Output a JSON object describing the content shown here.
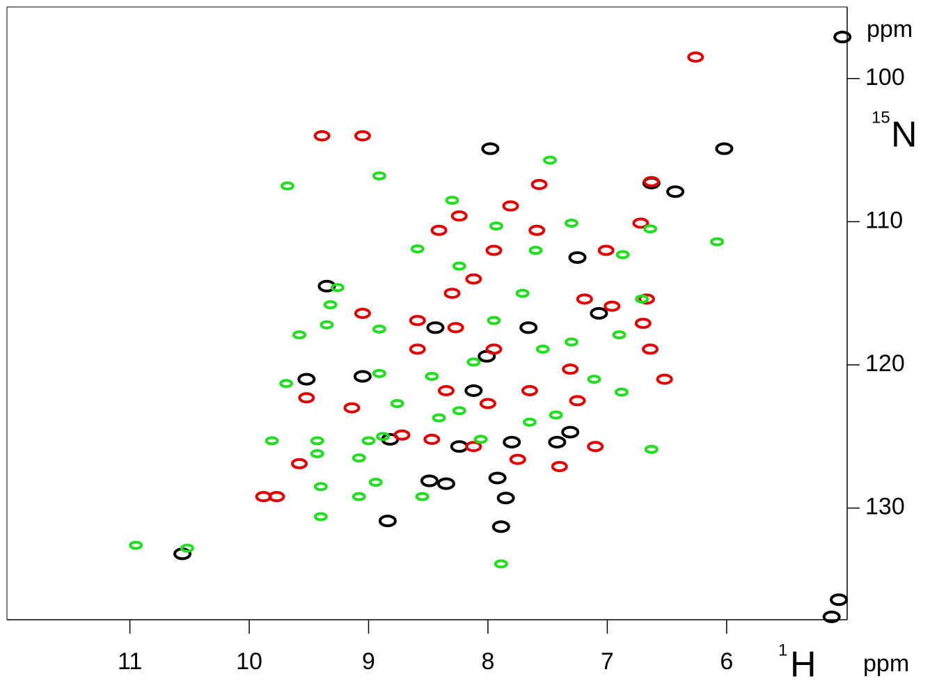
{
  "chart_data": {
    "type": "scatter",
    "x_label": {
      "mass": "1",
      "nucleus": "H",
      "unit": "ppm"
    },
    "y_label": {
      "mass": "15",
      "nucleus": "N",
      "unit": "ppm"
    },
    "xlim": [
      12.03,
      4.99
    ],
    "ylim": [
      95,
      137.8
    ],
    "xticks": [
      11,
      10,
      9,
      8,
      7,
      6
    ],
    "yticks": [
      100,
      110,
      120,
      130
    ],
    "series": [
      {
        "color": "#000000",
        "x": [
          6.02,
          7.98,
          6.43,
          6.63,
          7.85,
          7.89,
          7.42,
          7.8,
          7.92,
          8.35,
          8.84,
          9.35,
          9.52,
          9.05,
          8.24,
          5.03,
          5.06,
          5.12,
          10.56,
          7.25,
          7.07,
          8.49,
          8.82,
          8.01,
          7.66,
          7.31,
          8.12,
          8.44
        ],
        "values": [
          104.9,
          104.9,
          107.9,
          107.3,
          129.3,
          131.3,
          125.4,
          125.4,
          127.9,
          128.3,
          130.9,
          114.5,
          121.0,
          120.8,
          125.7,
          97.1,
          136.4,
          137.6,
          133.2,
          112.5,
          116.4,
          128.1,
          125.2,
          119.4,
          117.4,
          124.7,
          121.8,
          117.4
        ]
      },
      {
        "color": "#e00000",
        "x": [
          6.26,
          9.05,
          9.39,
          8.41,
          8.24,
          7.81,
          7.57,
          7.59,
          7.95,
          7.01,
          6.72,
          6.64,
          6.67,
          6.7,
          6.96,
          7.19,
          8.59,
          8.35,
          8.0,
          7.65,
          7.31,
          8.47,
          8.12,
          7.75,
          7.4,
          7.1,
          7.25,
          9.05,
          9.14,
          9.52,
          9.58,
          9.88,
          9.77,
          8.72,
          8.27,
          8.59,
          7.95,
          8.3,
          8.12,
          6.52,
          6.63
        ],
        "values": [
          98.5,
          104.0,
          104.0,
          110.6,
          109.6,
          108.9,
          107.4,
          110.6,
          112.0,
          112.0,
          110.1,
          118.9,
          115.4,
          117.1,
          115.9,
          115.4,
          118.9,
          121.8,
          122.7,
          121.8,
          120.3,
          125.2,
          125.7,
          126.6,
          127.1,
          125.7,
          122.5,
          116.4,
          123.0,
          122.3,
          126.9,
          129.2,
          129.2,
          124.9,
          117.4,
          116.9,
          118.9,
          115.0,
          114.0,
          121.0,
          107.2
        ]
      },
      {
        "color": "#22dd22",
        "x": [
          10.95,
          10.52,
          9.68,
          8.91,
          7.48,
          9.26,
          9.32,
          9.35,
          9.58,
          9.69,
          9.81,
          9.43,
          9.43,
          9.4,
          9.4,
          9.08,
          9.08,
          8.94,
          9.0,
          8.88,
          8.91,
          8.76,
          8.91,
          8.59,
          8.55,
          8.24,
          8.3,
          7.93,
          8.12,
          7.89,
          7.65,
          7.43,
          7.6,
          7.3,
          7.11,
          6.88,
          6.9,
          6.71,
          6.63,
          6.08,
          6.64,
          6.87,
          7.95,
          7.71,
          8.24,
          8.06,
          8.41,
          8.47,
          7.54,
          7.3
        ],
        "values": [
          132.6,
          132.8,
          107.5,
          106.8,
          105.7,
          114.6,
          115.8,
          117.2,
          117.9,
          121.3,
          125.3,
          125.3,
          126.2,
          128.5,
          130.6,
          126.5,
          129.2,
          128.2,
          125.3,
          125.0,
          120.6,
          122.7,
          117.5,
          111.9,
          129.2,
          113.1,
          108.5,
          110.3,
          119.8,
          133.9,
          124.0,
          123.5,
          112.0,
          110.1,
          121.0,
          121.9,
          117.9,
          115.4,
          125.9,
          111.4,
          110.5,
          112.3,
          116.9,
          115.0,
          123.2,
          125.2,
          123.7,
          120.8,
          118.9,
          118.4
        ]
      }
    ]
  }
}
